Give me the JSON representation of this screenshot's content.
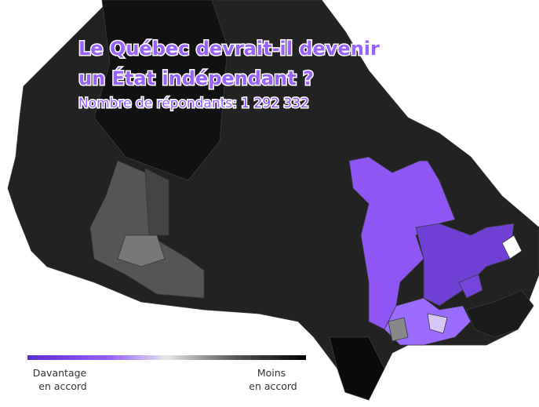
{
  "title_lines": [
    "Le Québec devrait-il devenir",
    "un État indépendant ?"
  ],
  "subtitle": {
    "label": "Nombre de répondants:",
    "count": "1 292 332"
  },
  "legend": {
    "left": [
      "Davantage",
      "en accord"
    ],
    "right": [
      "Moins",
      "en accord"
    ]
  }
}
